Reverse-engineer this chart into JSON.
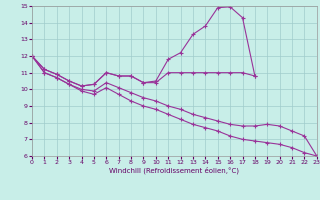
{
  "xlabel": "Windchill (Refroidissement éolien,°C)",
  "bg_color": "#c8eee8",
  "grid_color": "#a0cccc",
  "line_color": "#993399",
  "xlim": [
    0,
    23
  ],
  "ylim": [
    6,
    15
  ],
  "xticks": [
    0,
    1,
    2,
    3,
    4,
    5,
    6,
    7,
    8,
    9,
    10,
    11,
    12,
    13,
    14,
    15,
    16,
    17,
    18,
    19,
    20,
    21,
    22,
    23
  ],
  "yticks": [
    6,
    7,
    8,
    9,
    10,
    11,
    12,
    13,
    14,
    15
  ],
  "curve1_x": [
    0,
    1,
    2,
    3,
    4,
    5,
    6,
    7,
    8,
    9,
    10,
    11,
    12,
    13,
    14,
    15,
    16,
    17,
    18
  ],
  "curve1_y": [
    12.0,
    11.2,
    10.9,
    10.5,
    10.2,
    10.3,
    11.0,
    10.8,
    10.8,
    10.4,
    10.5,
    11.8,
    12.2,
    13.3,
    13.8,
    14.9,
    14.95,
    14.3,
    10.8
  ],
  "curve2_x": [
    0,
    1,
    2,
    3,
    4,
    5,
    6,
    7,
    8,
    9,
    10,
    11,
    12,
    13,
    14,
    15,
    16,
    17,
    18
  ],
  "curve2_y": [
    12.0,
    11.2,
    10.9,
    10.5,
    10.2,
    10.3,
    11.0,
    10.8,
    10.8,
    10.4,
    10.4,
    11.0,
    11.0,
    11.0,
    11.0,
    11.0,
    11.0,
    11.0,
    10.8
  ],
  "curve3_x": [
    0,
    1,
    2,
    3,
    4,
    5,
    6,
    7,
    8,
    9,
    10,
    11,
    12,
    13,
    14,
    15,
    16,
    17,
    18,
    19,
    20,
    21,
    22,
    23
  ],
  "curve3_y": [
    12.0,
    11.0,
    10.7,
    10.3,
    10.0,
    9.9,
    10.4,
    10.1,
    9.8,
    9.5,
    9.3,
    9.0,
    8.8,
    8.5,
    8.3,
    8.1,
    7.9,
    7.8,
    7.8,
    7.9,
    7.8,
    7.5,
    7.2,
    6.0
  ],
  "curve4_x": [
    0,
    1,
    2,
    3,
    4,
    5,
    6,
    7,
    8,
    9,
    10,
    11,
    12,
    13,
    14,
    15,
    16,
    17,
    18,
    19,
    20,
    21,
    22,
    23
  ],
  "curve4_y": [
    12.0,
    11.0,
    10.7,
    10.3,
    9.9,
    9.7,
    10.1,
    9.7,
    9.3,
    9.0,
    8.8,
    8.5,
    8.2,
    7.9,
    7.7,
    7.5,
    7.2,
    7.0,
    6.9,
    6.8,
    6.7,
    6.5,
    6.2,
    6.0
  ]
}
